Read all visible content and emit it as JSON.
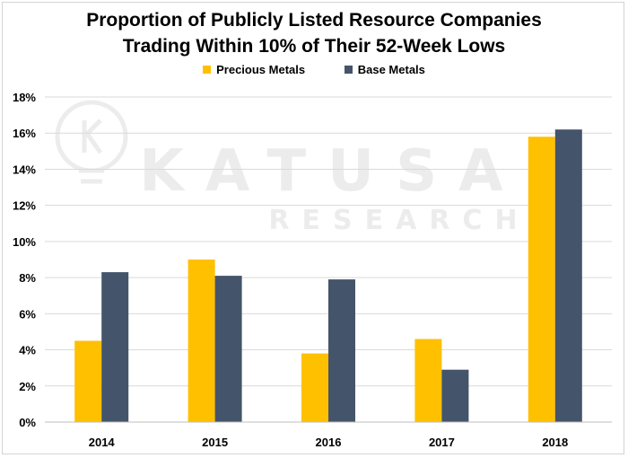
{
  "chart_data": {
    "type": "bar",
    "title_lines": [
      "Proportion of Publicly Listed Resource Companies",
      "Trading Within 10% of Their 52-Week Lows"
    ],
    "categories": [
      "2014",
      "2015",
      "2016",
      "2017",
      "2018"
    ],
    "series": [
      {
        "name": "Precious Metals",
        "color": "#FFC000",
        "values": [
          4.5,
          9.0,
          3.8,
          4.6,
          15.8
        ]
      },
      {
        "name": "Base Metals",
        "color": "#44546A",
        "values": [
          8.3,
          8.1,
          7.9,
          2.9,
          16.2
        ]
      }
    ],
    "ylim": [
      0,
      18
    ],
    "yticks": [
      0,
      2,
      4,
      6,
      8,
      10,
      12,
      14,
      16,
      18
    ],
    "ytick_suffix": "%",
    "grid": true,
    "legend_position": "top",
    "watermark": {
      "line1": "KATUSA",
      "line2": "RESEARCH",
      "icon": "lightbulb-k-icon"
    }
  }
}
